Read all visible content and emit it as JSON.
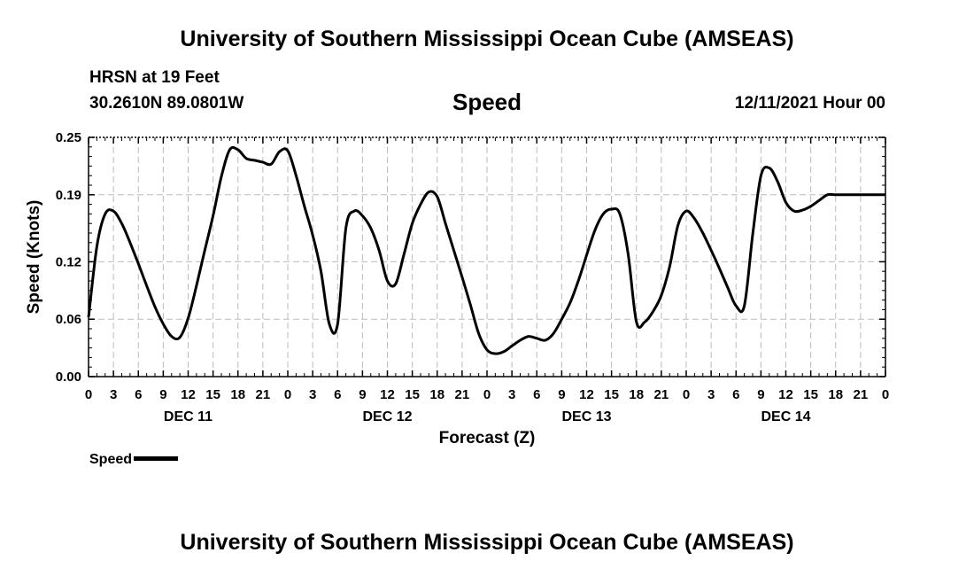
{
  "header": {
    "title": "University of Southern Mississippi Ocean Cube (AMSEAS)",
    "station": "HRSN at 19 Feet",
    "coordinates": "30.2610N  89.0801W",
    "variable": "Speed",
    "datetime": "12/11/2021 Hour 00"
  },
  "footer": {
    "title": "University of Southern Mississippi Ocean Cube (AMSEAS)"
  },
  "legend": {
    "label": "Speed"
  },
  "colors": {
    "line": "#000000",
    "grid": "#bbbbbb",
    "background": "#ffffff"
  },
  "chart_data": {
    "type": "line",
    "title": "Speed",
    "xlabel": "Forecast (Z)",
    "ylabel": "Speed (Knots)",
    "xlim": [
      0,
      96
    ],
    "ylim": [
      0,
      0.25
    ],
    "yticks": [
      0.0,
      0.06,
      0.12,
      0.19,
      0.25
    ],
    "ytick_labels": [
      "0.00",
      "0.06",
      "0.12",
      "0.19",
      "0.25"
    ],
    "xtick_labels": [
      "0",
      "3",
      "6",
      "9",
      "12",
      "15",
      "18",
      "21",
      "0",
      "3",
      "6",
      "9",
      "12",
      "15",
      "18",
      "21",
      "0",
      "3",
      "6",
      "9",
      "12",
      "15",
      "18",
      "21",
      "0",
      "3",
      "6",
      "9",
      "12",
      "15",
      "18",
      "21",
      "0"
    ],
    "day_labels": [
      {
        "label": "DEC 11",
        "hour": 12
      },
      {
        "label": "DEC 12",
        "hour": 36
      },
      {
        "label": "DEC 13",
        "hour": 60
      },
      {
        "label": "DEC 14",
        "hour": 84
      }
    ],
    "grid": true,
    "legend_position": "bottom-left",
    "series": [
      {
        "name": "Speed",
        "x": [
          0,
          1,
          2,
          3,
          4,
          5,
          6,
          7,
          8,
          9,
          10,
          11,
          12,
          13,
          14,
          15,
          16,
          17,
          18,
          19,
          20,
          21,
          22,
          23,
          24,
          25,
          26,
          27,
          28,
          29,
          30,
          31,
          32,
          33,
          34,
          35,
          36,
          37,
          38,
          39,
          40,
          41,
          42,
          43,
          44,
          45,
          46,
          47,
          48,
          49,
          50,
          51,
          52,
          53,
          54,
          55,
          56,
          57,
          58,
          59,
          60,
          61,
          62,
          63,
          64,
          65,
          66,
          67,
          68,
          69,
          70,
          71,
          72,
          73,
          74,
          75,
          76,
          77,
          78,
          79,
          80,
          81,
          82,
          83,
          84,
          85,
          86,
          87,
          88,
          89,
          90,
          91,
          92,
          93,
          94,
          95,
          96
        ],
        "values": [
          0.062,
          0.136,
          0.17,
          0.173,
          0.16,
          0.14,
          0.118,
          0.095,
          0.073,
          0.055,
          0.042,
          0.041,
          0.061,
          0.095,
          0.132,
          0.168,
          0.209,
          0.237,
          0.237,
          0.228,
          0.226,
          0.224,
          0.222,
          0.235,
          0.236,
          0.21,
          0.178,
          0.148,
          0.11,
          0.055,
          0.055,
          0.155,
          0.173,
          0.168,
          0.155,
          0.132,
          0.1,
          0.097,
          0.128,
          0.16,
          0.18,
          0.193,
          0.188,
          0.16,
          0.132,
          0.104,
          0.075,
          0.045,
          0.028,
          0.024,
          0.026,
          0.032,
          0.038,
          0.042,
          0.04,
          0.038,
          0.045,
          0.06,
          0.077,
          0.1,
          0.127,
          0.153,
          0.17,
          0.175,
          0.17,
          0.128,
          0.057,
          0.057,
          0.068,
          0.085,
          0.115,
          0.158,
          0.173,
          0.165,
          0.15,
          0.132,
          0.113,
          0.093,
          0.074,
          0.074,
          0.148,
          0.21,
          0.218,
          0.204,
          0.182,
          0.173,
          0.174,
          0.178,
          0.184,
          0.19,
          0.19,
          0.19,
          0.19,
          0.19,
          0.19,
          0.19,
          0.19
        ]
      }
    ]
  }
}
